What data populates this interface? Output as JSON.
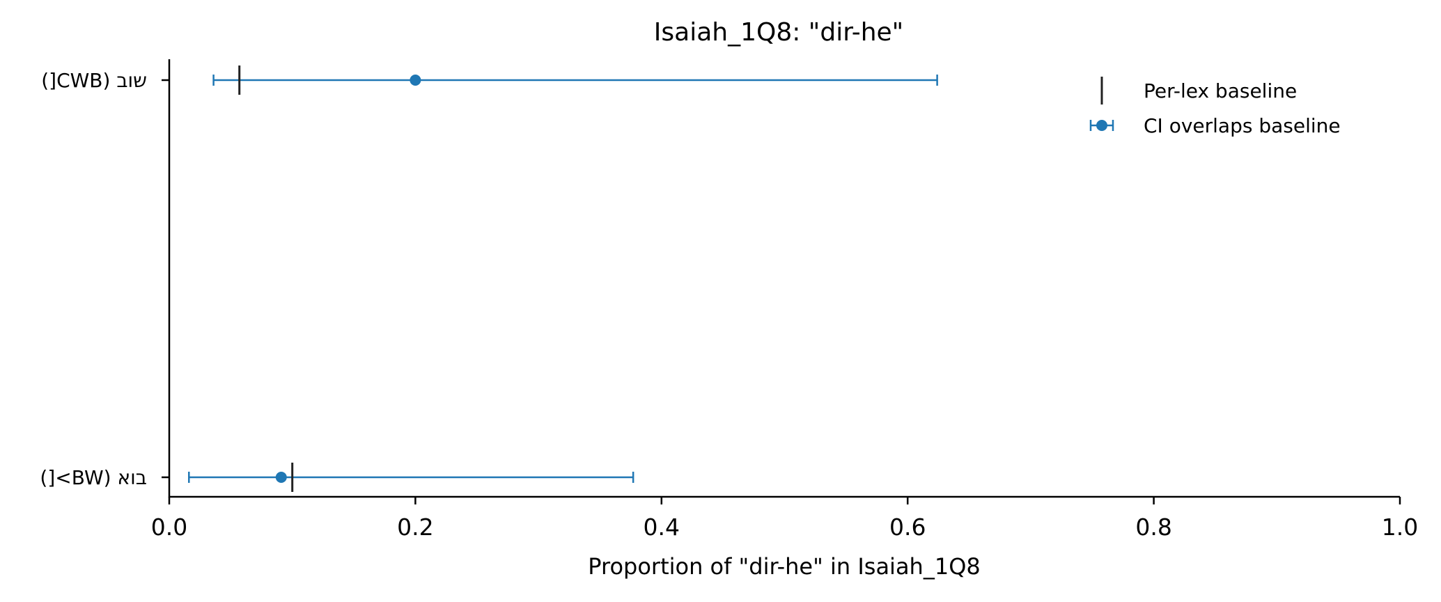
{
  "chart_data": {
    "type": "scatter",
    "title": "Isaiah_1Q8: \"dir-he\"",
    "xlabel": "Proportion of \"dir-he\" in Isaiah_1Q8",
    "ylabel": "",
    "xlim": [
      0.0,
      1.0
    ],
    "xticks": [
      "0.0",
      "0.2",
      "0.4",
      "0.6",
      "0.8",
      "1.0"
    ],
    "grid": false,
    "legend_position": "top-right",
    "legend": [
      {
        "label": "Per-lex baseline",
        "marker": "vertical-line",
        "color": "#222222"
      },
      {
        "label": "CI overlaps baseline",
        "marker": "dot-errorbar",
        "color": "#1f77b4"
      }
    ],
    "categories": [
      "שוב (CWB[)",
      "בוא (BW>[)"
    ],
    "points": [
      {
        "category": "שוב (CWB[)",
        "value": 0.2,
        "ci_low": 0.036,
        "ci_high": 0.624,
        "baseline": 0.057
      },
      {
        "category": "בוא (BW>[)",
        "value": 0.091,
        "ci_low": 0.016,
        "ci_high": 0.377,
        "baseline": 0.1
      }
    ],
    "colors": {
      "point": "#1f77b4",
      "baseline": "#222222",
      "axis": "#000000"
    }
  }
}
